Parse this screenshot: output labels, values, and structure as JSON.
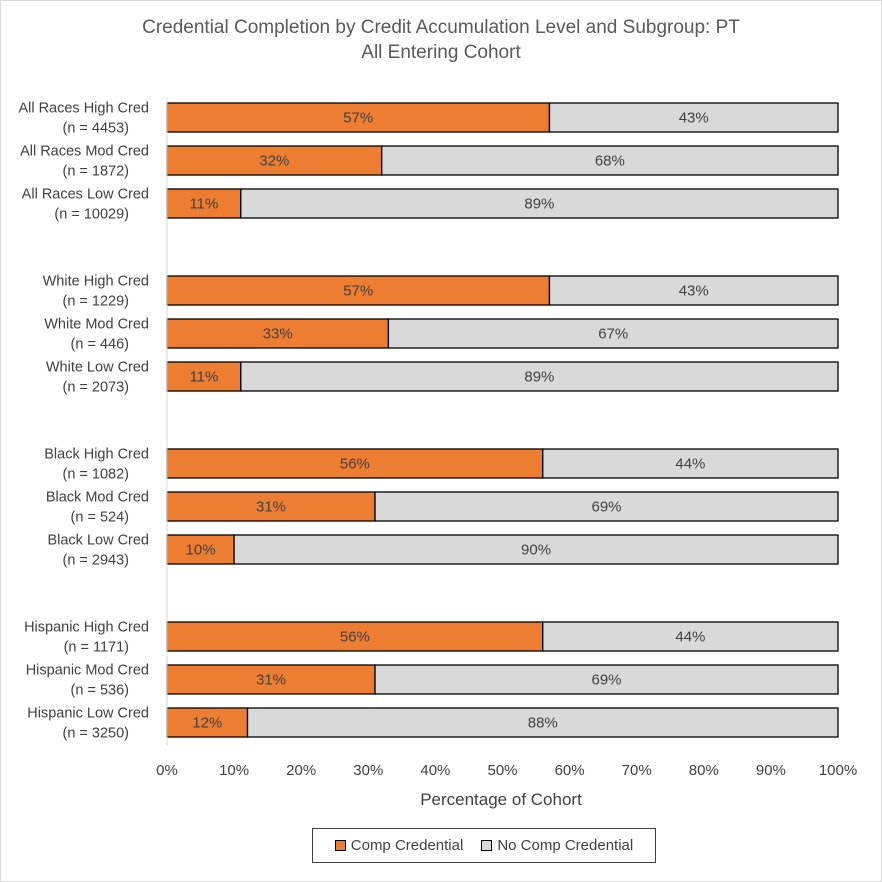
{
  "chart_data": {
    "type": "bar",
    "orientation": "horizontal",
    "stacked": true,
    "title_lines": [
      "Credential Completion by Credit Accumulation Level and Subgroup: PT",
      "All Entering Cohort"
    ],
    "xlabel": "Percentage of Cohort",
    "xlim": [
      0,
      100
    ],
    "x_ticks": [
      "0%",
      "10%",
      "20%",
      "30%",
      "40%",
      "50%",
      "60%",
      "70%",
      "80%",
      "90%",
      "100%"
    ],
    "grid": false,
    "legend_position": "bottom",
    "categories": [
      [
        "All Races High Cred",
        "(n = 4453)"
      ],
      [
        "All Races Mod Cred",
        "(n = 1872)"
      ],
      [
        "All Races Low Cred",
        "(n = 10029)"
      ],
      [
        "White High Cred",
        "(n = 1229)"
      ],
      [
        "White Mod Cred",
        "(n = 446)"
      ],
      [
        "White Low Cred",
        "(n = 2073)"
      ],
      [
        "Black High Cred",
        "(n = 1082)"
      ],
      [
        "Black Mod Cred",
        "(n = 524)"
      ],
      [
        "Black Low Cred",
        "(n = 2943)"
      ],
      [
        "Hispanic High Cred",
        "(n = 1171)"
      ],
      [
        "Hispanic Mod Cred",
        "(n = 536)"
      ],
      [
        "Hispanic Low Cred",
        "(n = 3250)"
      ]
    ],
    "series": [
      {
        "name": "Comp Credential",
        "color": "#ed7d31",
        "values": [
          57,
          32,
          11,
          57,
          33,
          11,
          56,
          31,
          10,
          56,
          31,
          12
        ],
        "labels": [
          "57%",
          "32%",
          "11%",
          "57%",
          "33%",
          "11%",
          "56%",
          "31%",
          "10%",
          "56%",
          "31%",
          "12%"
        ]
      },
      {
        "name": "No Comp Credential",
        "color": "#d9d9d9",
        "values": [
          43,
          68,
          89,
          43,
          67,
          89,
          44,
          69,
          90,
          44,
          69,
          88
        ],
        "labels": [
          "43%",
          "68%",
          "89%",
          "43%",
          "67%",
          "89%",
          "44%",
          "69%",
          "90%",
          "44%",
          "69%",
          "88%"
        ]
      }
    ]
  }
}
